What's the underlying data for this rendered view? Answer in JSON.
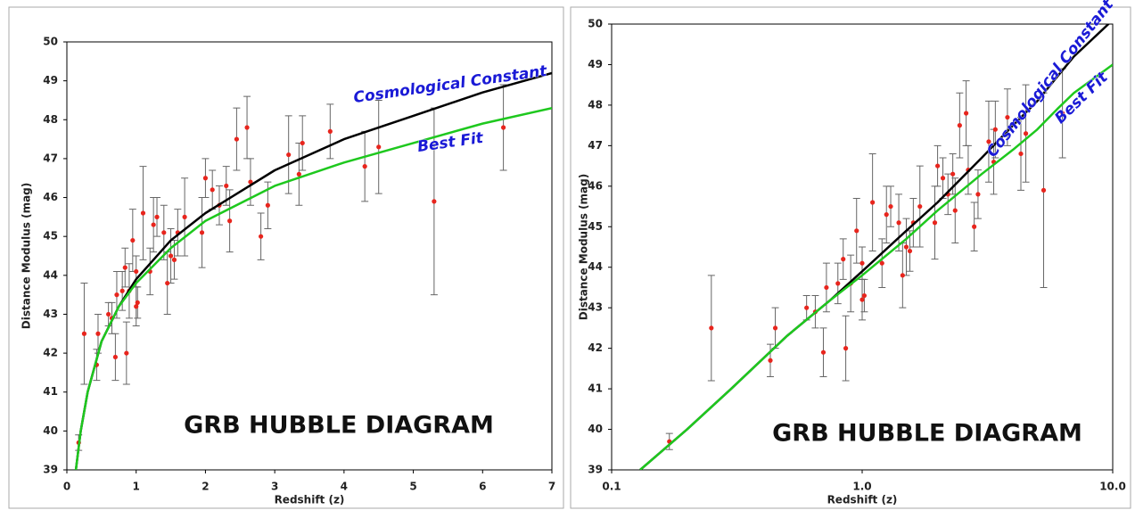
{
  "chart_data": [
    {
      "type": "scatter",
      "x_label": "Redshift (z)",
      "y_label": "Distance Modulus (mag)",
      "annotation": "GRB HUBBLE DIAGRAM",
      "xlim": [
        0,
        7
      ],
      "ylim": [
        39,
        50
      ],
      "xticks": [
        0,
        1,
        2,
        3,
        4,
        5,
        6,
        7
      ],
      "yticks": [
        39,
        40,
        41,
        42,
        43,
        44,
        45,
        46,
        47,
        48,
        49,
        50
      ],
      "series": [
        {
          "color": "#e8251d",
          "error_color": "#666666",
          "x": [
            0.17,
            0.25,
            0.43,
            0.45,
            0.6,
            0.65,
            0.7,
            0.72,
            0.8,
            0.84,
            0.86,
            0.9,
            0.95,
            1.0,
            1.02,
            1.0,
            1.1,
            1.2,
            1.25,
            1.3,
            1.4,
            1.45,
            1.5,
            1.55,
            1.6,
            1.7,
            1.95,
            2.0,
            2.1,
            2.2,
            2.3,
            2.35,
            2.45,
            2.6,
            2.65,
            2.8,
            2.9,
            3.2,
            3.35,
            3.4,
            3.8,
            4.3,
            4.5,
            5.3,
            6.3
          ],
          "values": [
            39.7,
            42.5,
            41.7,
            42.5,
            43.0,
            42.9,
            41.9,
            43.5,
            43.6,
            44.2,
            42.0,
            43.6,
            44.9,
            43.2,
            43.3,
            44.1,
            45.6,
            44.1,
            45.3,
            45.5,
            45.1,
            43.8,
            44.5,
            44.4,
            45.1,
            45.5,
            45.1,
            46.5,
            46.2,
            45.8,
            46.3,
            45.4,
            47.5,
            47.8,
            46.4,
            45.0,
            45.8,
            47.1,
            46.6,
            47.4,
            47.7,
            46.8,
            47.3,
            45.9,
            47.8
          ],
          "errors": [
            0.2,
            1.3,
            0.4,
            0.5,
            0.3,
            0.4,
            0.6,
            0.6,
            0.5,
            0.5,
            0.8,
            0.7,
            0.8,
            0.5,
            0.4,
            0.4,
            1.2,
            0.6,
            0.7,
            0.5,
            0.7,
            0.8,
            0.7,
            0.5,
            0.6,
            1.0,
            0.9,
            0.5,
            0.5,
            0.5,
            0.5,
            0.8,
            0.8,
            0.8,
            0.6,
            0.6,
            0.6,
            1.0,
            0.8,
            0.7,
            0.7,
            0.9,
            1.2,
            2.4,
            1.1
          ]
        },
        {
          "name": "Cosmological Constant",
          "color": "#000000",
          "x": [
            0.13,
            0.2,
            0.3,
            0.5,
            0.75,
            1,
            1.5,
            2,
            3,
            4,
            5,
            6,
            7
          ],
          "values": [
            39.0,
            40.0,
            41.0,
            42.3,
            43.2,
            43.9,
            44.9,
            45.6,
            46.7,
            47.5,
            48.1,
            48.7,
            49.2
          ]
        },
        {
          "name": "Best Fit",
          "color": "#1ec81e",
          "x": [
            0.13,
            0.2,
            0.3,
            0.5,
            0.75,
            1,
            1.5,
            2,
            3,
            4,
            5,
            6,
            7
          ],
          "values": [
            39.0,
            40.0,
            41.0,
            42.3,
            43.2,
            43.8,
            44.7,
            45.4,
            46.3,
            46.9,
            47.4,
            47.9,
            48.3
          ]
        }
      ]
    },
    {
      "type": "scatter",
      "x_label": "Redshift (z)",
      "y_label": "Distance Modulus (mag)",
      "annotation": "GRB HUBBLE DIAGRAM",
      "xscale": "log",
      "xlim": [
        0.1,
        10
      ],
      "ylim": [
        39,
        50
      ],
      "xticks": [
        0.1,
        {
          "value": 1,
          "label": "1.0"
        },
        {
          "value": 10,
          "label": "10.0"
        }
      ],
      "yticks": [
        39,
        40,
        41,
        42,
        43,
        44,
        45,
        46,
        47,
        48,
        49,
        50
      ],
      "series": [
        {
          "color": "#e8251d",
          "error_color": "#666666",
          "x": [
            0.17,
            0.25,
            0.43,
            0.45,
            0.6,
            0.65,
            0.7,
            0.72,
            0.8,
            0.84,
            0.86,
            0.9,
            0.95,
            1.0,
            1.02,
            1.0,
            1.1,
            1.2,
            1.25,
            1.3,
            1.4,
            1.45,
            1.5,
            1.55,
            1.6,
            1.7,
            1.95,
            2.0,
            2.1,
            2.2,
            2.3,
            2.35,
            2.45,
            2.6,
            2.65,
            2.8,
            2.9,
            3.2,
            3.35,
            3.4,
            3.8,
            4.3,
            4.5,
            5.3,
            6.3
          ],
          "values": [
            39.7,
            42.5,
            41.7,
            42.5,
            43.0,
            42.9,
            41.9,
            43.5,
            43.6,
            44.2,
            42.0,
            43.6,
            44.9,
            43.2,
            43.3,
            44.1,
            45.6,
            44.1,
            45.3,
            45.5,
            45.1,
            43.8,
            44.5,
            44.4,
            45.1,
            45.5,
            45.1,
            46.5,
            46.2,
            45.8,
            46.3,
            45.4,
            47.5,
            47.8,
            46.4,
            45.0,
            45.8,
            47.1,
            46.6,
            47.4,
            47.7,
            46.8,
            47.3,
            45.9,
            47.8
          ],
          "errors": [
            0.2,
            1.3,
            0.4,
            0.5,
            0.3,
            0.4,
            0.6,
            0.6,
            0.5,
            0.5,
            0.8,
            0.7,
            0.8,
            0.5,
            0.4,
            0.4,
            1.2,
            0.6,
            0.7,
            0.5,
            0.7,
            0.8,
            0.7,
            0.5,
            0.6,
            1.0,
            0.9,
            0.5,
            0.5,
            0.5,
            0.5,
            0.8,
            0.8,
            0.8,
            0.6,
            0.6,
            0.6,
            1.0,
            0.8,
            0.7,
            0.7,
            0.9,
            1.2,
            2.4,
            1.1
          ]
        },
        {
          "name": "Cosmological Constant",
          "color": "#000000",
          "x": [
            0.13,
            0.2,
            0.3,
            0.5,
            0.75,
            1,
            1.5,
            2,
            3,
            4,
            5,
            6,
            7,
            10
          ],
          "values": [
            39.0,
            40.0,
            41.0,
            42.3,
            43.2,
            43.9,
            44.9,
            45.6,
            46.7,
            47.5,
            48.1,
            48.7,
            49.2,
            50.1
          ]
        },
        {
          "name": "Best Fit",
          "color": "#1ec81e",
          "x": [
            0.13,
            0.2,
            0.3,
            0.5,
            0.75,
            1,
            1.5,
            2,
            3,
            4,
            5,
            6,
            7,
            10
          ],
          "values": [
            39.0,
            40.0,
            41.0,
            42.3,
            43.2,
            43.8,
            44.7,
            45.4,
            46.3,
            46.9,
            47.4,
            47.9,
            48.3,
            49.0
          ]
        }
      ]
    }
  ]
}
